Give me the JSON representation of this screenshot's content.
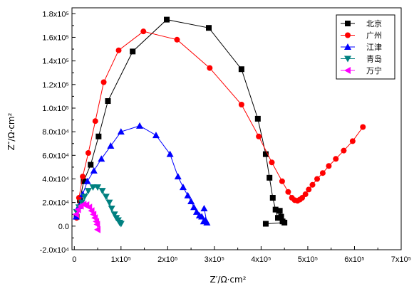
{
  "chart_data": {
    "type": "scatter",
    "title": "",
    "xlabel": "Z′/Ω·cm²",
    "ylabel": "Z″/Ω·cm²",
    "xlim": [
      -5000,
      700000
    ],
    "ylim": [
      -20000,
      185000
    ],
    "x_ticks": [
      {
        "value": 0,
        "label": "0"
      },
      {
        "value": 100000,
        "label": "1x10⁵"
      },
      {
        "value": 200000,
        "label": "2x10⁵"
      },
      {
        "value": 300000,
        "label": "3x10⁵"
      },
      {
        "value": 400000,
        "label": "4x10⁵"
      },
      {
        "value": 500000,
        "label": "5x10⁵"
      },
      {
        "value": 600000,
        "label": "6x10⁵"
      },
      {
        "value": 700000,
        "label": "7x10⁵"
      }
    ],
    "y_ticks": [
      {
        "value": -20000,
        "label": "-2.0x10⁴"
      },
      {
        "value": 0,
        "label": "0.0"
      },
      {
        "value": 20000,
        "label": "2.0x10⁴"
      },
      {
        "value": 40000,
        "label": "4.0x10⁴"
      },
      {
        "value": 60000,
        "label": "6.0x10⁴"
      },
      {
        "value": 80000,
        "label": "8.0x10⁴"
      },
      {
        "value": 100000,
        "label": "1.0x10⁵"
      },
      {
        "value": 120000,
        "label": "1.2x10⁵"
      },
      {
        "value": 140000,
        "label": "1.4x10⁵"
      },
      {
        "value": 160000,
        "label": "1.6x10⁵"
      },
      {
        "value": 180000,
        "label": "1.8x10⁵"
      }
    ],
    "grid": false,
    "legend_position": "top-right",
    "series": [
      {
        "name": "北京",
        "color": "#000000",
        "marker": "square",
        "x": [
          5000,
          12000,
          20000,
          35000,
          52000,
          72000,
          125000,
          198000,
          288000,
          358000,
          393000,
          410000,
          418000,
          425000,
          431000,
          436000,
          440000,
          443000,
          446000,
          450000,
          410000
        ],
        "y": [
          8000,
          22000,
          38000,
          52000,
          76000,
          106000,
          148000,
          175000,
          168000,
          133000,
          91000,
          61000,
          41000,
          24000,
          14000,
          7000,
          13000,
          8000,
          4000,
          3000,
          2000
        ]
      },
      {
        "name": "广州",
        "color": "#ff0000",
        "marker": "circle",
        "x": [
          5000,
          10000,
          18000,
          30000,
          45000,
          63000,
          95000,
          148000,
          220000,
          290000,
          358000,
          395000,
          423000,
          445000,
          458000,
          466000,
          472000,
          478000,
          483000,
          488000,
          495000,
          502000,
          510000,
          520000,
          532000,
          545000,
          560000,
          577000,
          596000,
          618000
        ],
        "y": [
          7000,
          24000,
          42000,
          62000,
          89000,
          122000,
          149000,
          165000,
          158000,
          134000,
          103000,
          76000,
          54000,
          38000,
          29000,
          24000,
          22000,
          21500,
          22500,
          24000,
          27000,
          31000,
          35000,
          40000,
          45000,
          51000,
          57000,
          64000,
          72000,
          84000
        ]
      },
      {
        "name": "江津",
        "color": "#0000ff",
        "marker": "triangle-up",
        "x": [
          4000,
          10000,
          18000,
          28000,
          42000,
          58000,
          78000,
          100000,
          140000,
          175000,
          205000,
          222000,
          233000,
          243000,
          250000,
          256000,
          262000,
          268000,
          273000,
          277000,
          281000,
          284000,
          278000
        ],
        "y": [
          8000,
          17000,
          27000,
          38000,
          47000,
          57000,
          68000,
          80000,
          85000,
          77000,
          61000,
          42000,
          33000,
          26000,
          21000,
          16000,
          12000,
          9000,
          8000,
          4000,
          5000,
          3000,
          15000
        ],
        "highlight_last": true
      },
      {
        "name": "青岛",
        "color": "#008080",
        "marker": "triangle-down",
        "x": [
          5000,
          10000,
          16000,
          22000,
          30000,
          40000,
          50000,
          60000,
          68000,
          75000,
          80000,
          86000,
          90000,
          94000,
          97000,
          100000
        ],
        "y": [
          12000,
          16000,
          20000,
          25000,
          30000,
          33000,
          33000,
          30000,
          25000,
          20000,
          15000,
          10000,
          7000,
          5000,
          3000,
          2000
        ]
      },
      {
        "name": "万宁",
        "color": "#ff00ff",
        "marker": "triangle-left",
        "x": [
          4000,
          8000,
          14000,
          20000,
          26000,
          32000,
          37000,
          41000,
          44000,
          47000,
          49000,
          50000
        ],
        "y": [
          10000,
          14000,
          17000,
          18500,
          18000,
          16000,
          13000,
          10000,
          7000,
          4000,
          1500,
          -3000
        ]
      }
    ]
  }
}
